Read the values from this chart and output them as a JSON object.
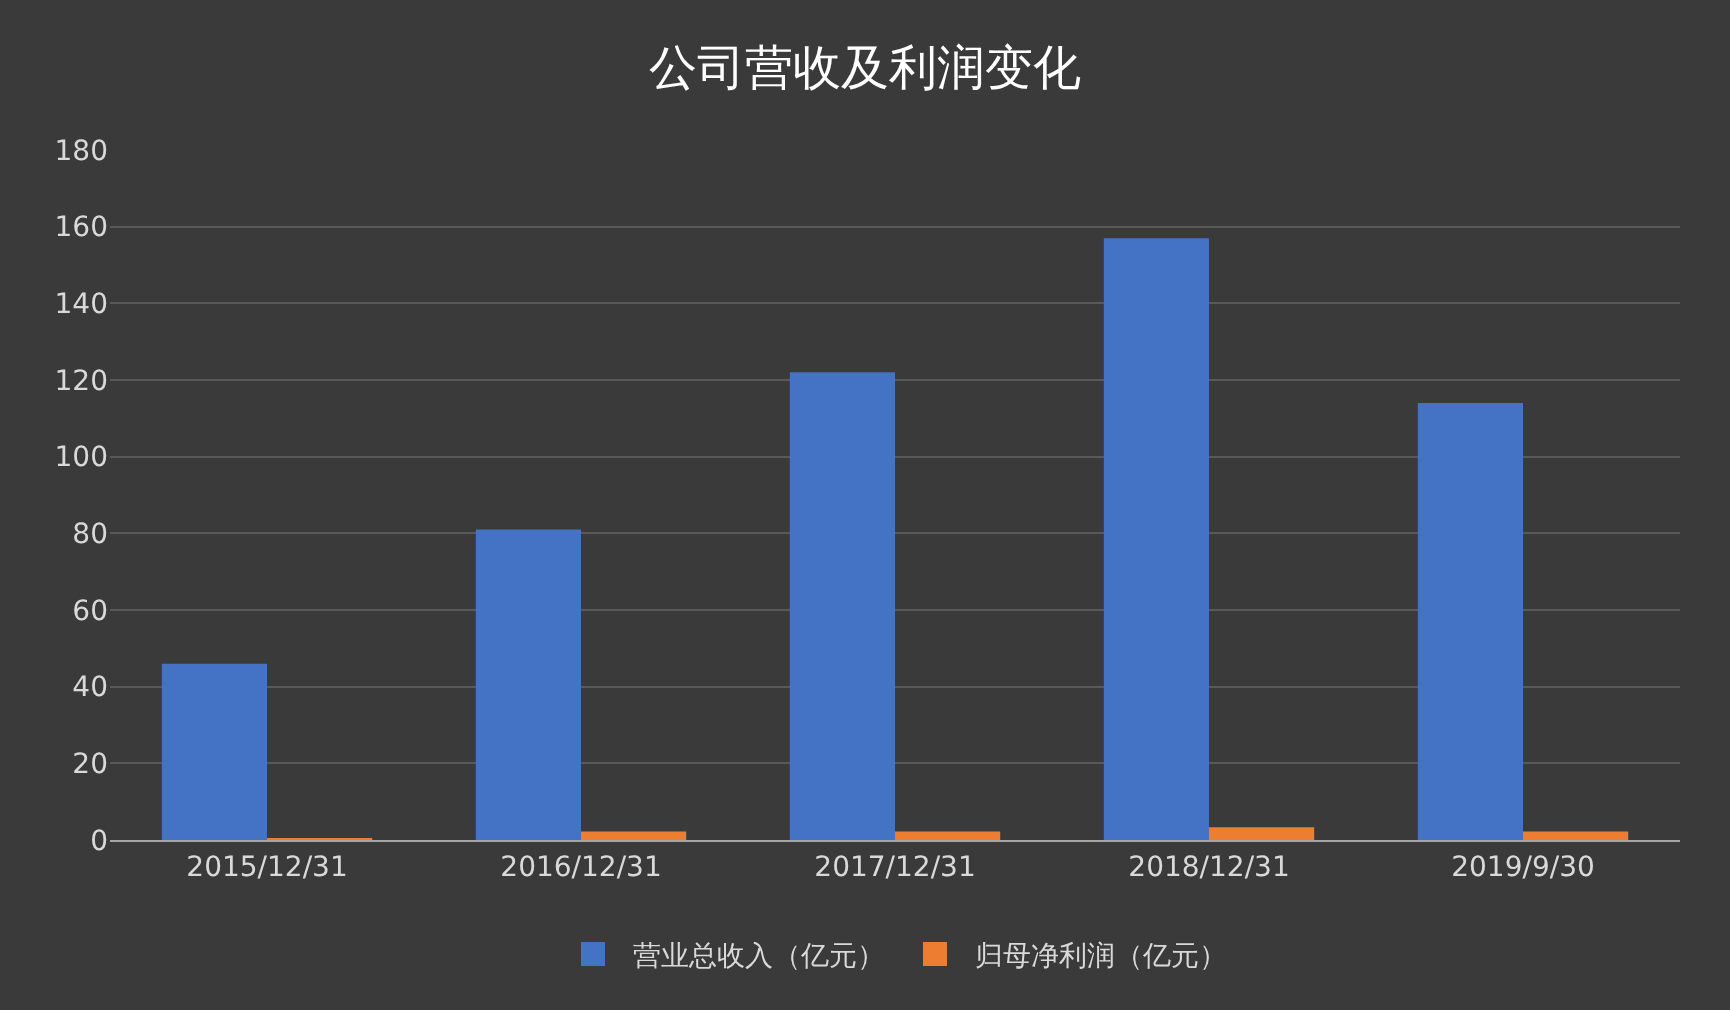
{
  "chart_data": {
    "type": "bar",
    "title": "公司营收及利润变化",
    "categories": [
      "2015/12/31",
      "2016/12/31",
      "2017/12/31",
      "2018/12/31",
      "2019/9/30"
    ],
    "series": [
      {
        "name": "营业总收入（亿元）",
        "color": "#4472c4",
        "values": [
          46,
          81,
          122,
          157,
          114
        ]
      },
      {
        "name": "归母净利润（亿元）",
        "color": "#ed7d31",
        "values": [
          0.5,
          2.2,
          2.2,
          3.3,
          2.2
        ]
      }
    ],
    "ylim": [
      0,
      180
    ],
    "yticks": [
      0,
      20,
      40,
      60,
      80,
      100,
      120,
      140,
      160,
      180
    ],
    "grid": "y",
    "legend": "bottom"
  }
}
